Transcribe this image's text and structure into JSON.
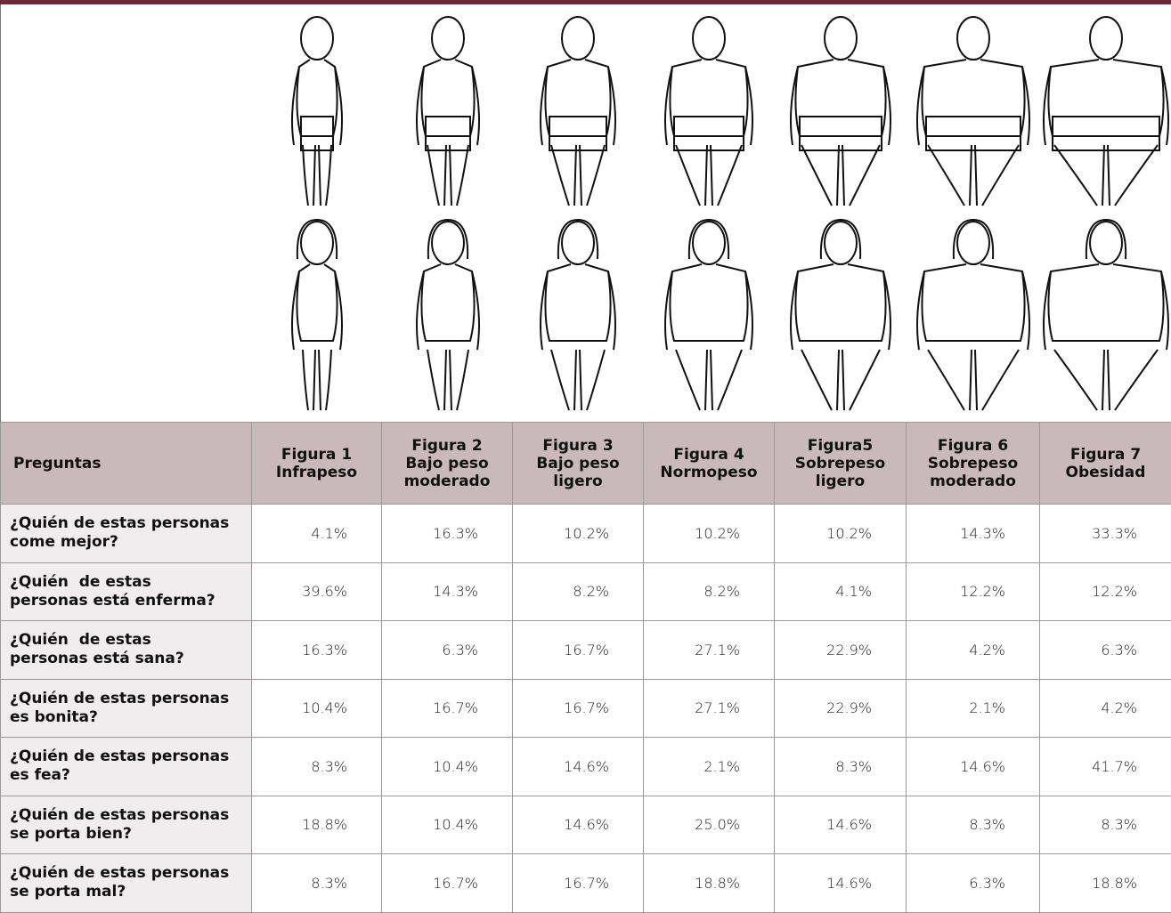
{
  "table": {
    "header": [
      [
        "Preguntas"
      ],
      [
        "Figura 1",
        "Infrapeso"
      ],
      [
        "Figura 2",
        "Bajo peso",
        "moderado"
      ],
      [
        "Figura 3",
        "Bajo peso",
        "ligero"
      ],
      [
        "Figura 4",
        "Normopeso"
      ],
      [
        "Figura5",
        "Sobrepeso",
        "ligero"
      ],
      [
        "Figura 6",
        "Sobrepeso",
        "moderado"
      ],
      [
        "Figura 7",
        "Obesidad"
      ]
    ],
    "rows": [
      {
        "question": [
          "¿Quién de estas personas",
          "come mejor?"
        ],
        "values": [
          "4.1%",
          "16.3%",
          "10.2%",
          "10.2%",
          "10.2%",
          "14.3%",
          "33.3%"
        ]
      },
      {
        "question": [
          "¿Quién  de estas",
          "personas está enferma?"
        ],
        "values": [
          "39.6%",
          "14.3%",
          "8.2%",
          "8.2%",
          "4.1%",
          "12.2%",
          "12.2%"
        ]
      },
      {
        "question": [
          "¿Quién  de estas",
          "personas está sana?"
        ],
        "values": [
          "16.3%",
          "6.3%",
          "16.7%",
          "27.1%",
          "22.9%",
          "4.2%",
          "6.3%"
        ]
      },
      {
        "question": [
          "¿Quién de estas personas",
          "es bonita?"
        ],
        "values": [
          "10.4%",
          "16.7%",
          "16.7%",
          "27.1%",
          "22.9%",
          "2.1%",
          "4.2%"
        ]
      },
      {
        "question": [
          "¿Quién de estas personas",
          "es fea?"
        ],
        "values": [
          "8.3%",
          "10.4%",
          "14.6%",
          "2.1%",
          "8.3%",
          "14.6%",
          "41.7%"
        ]
      },
      {
        "question": [
          "¿Quién de estas personas",
          "se porta bien?"
        ],
        "values": [
          "18.8%",
          "10.4%",
          "14.6%",
          "25.0%",
          "14.6%",
          "8.3%",
          "8.3%"
        ]
      },
      {
        "question": [
          "¿Quién de estas personas",
          "se porta mal?"
        ],
        "values": [
          "8.3%",
          "16.7%",
          "16.7%",
          "18.8%",
          "14.6%",
          "6.3%",
          "18.8%"
        ]
      }
    ]
  }
}
